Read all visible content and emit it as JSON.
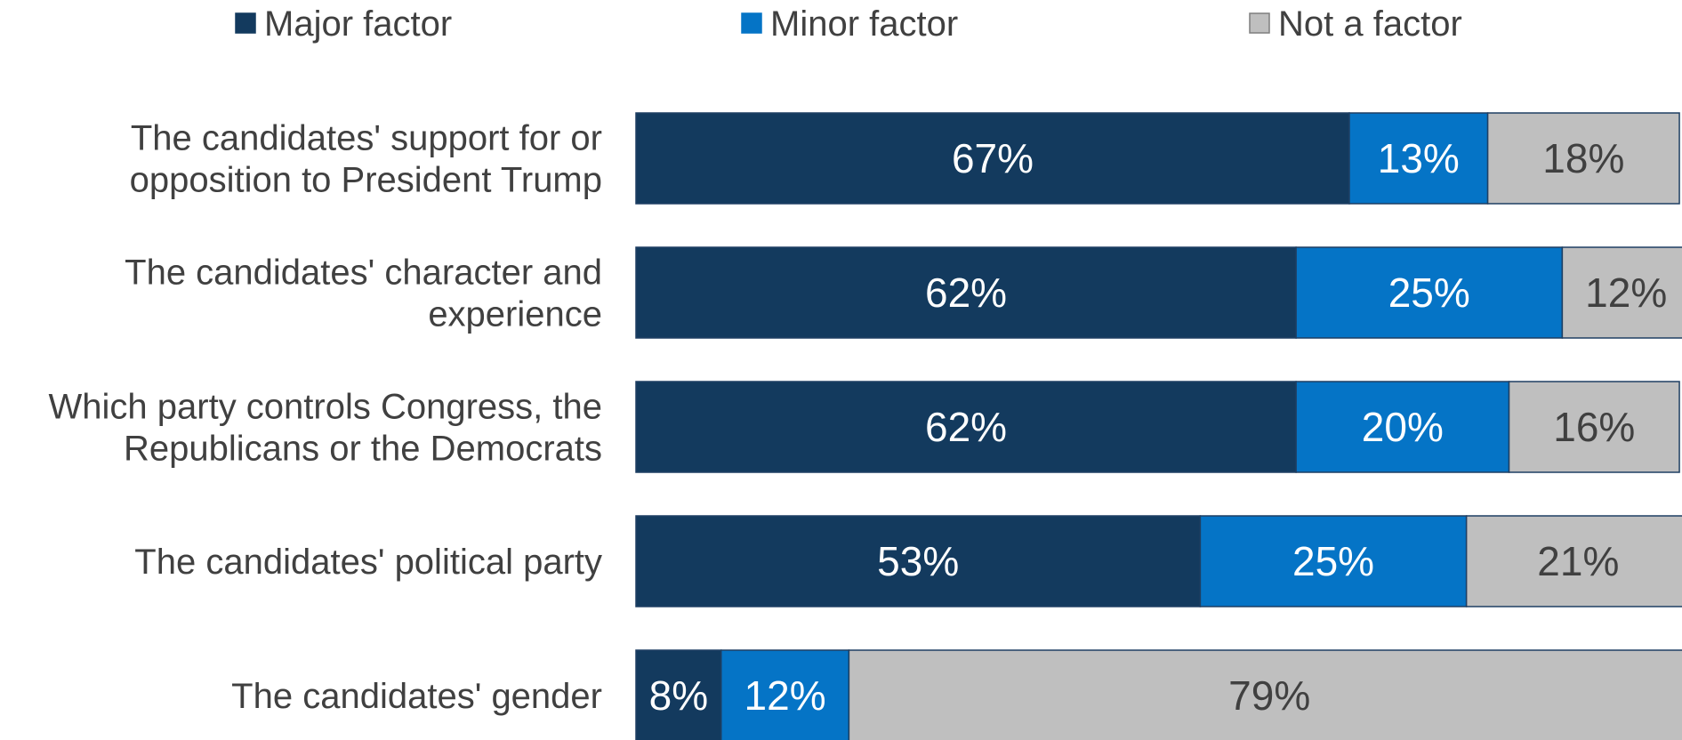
{
  "chart_data": {
    "type": "bar",
    "orientation": "horizontal",
    "stacked": true,
    "title": "",
    "xlabel": "",
    "ylabel": "",
    "xlim": [
      0,
      100
    ],
    "grid": false,
    "legend_position": "top",
    "categories": [
      [
        "The candidates' support for or",
        "opposition to President Trump"
      ],
      [
        "The candidates' character and",
        "experience"
      ],
      [
        "Which party controls Congress, the",
        "Republicans or the Democrats"
      ],
      [
        "The candidates' political party"
      ],
      [
        "The candidates' gender"
      ]
    ],
    "series": [
      {
        "name": "Major factor",
        "color": "#133a5e",
        "label_color": "#ffffff",
        "values": [
          67,
          62,
          62,
          53,
          8
        ]
      },
      {
        "name": "Minor factor",
        "color": "#0574c6",
        "label_color": "#ffffff",
        "values": [
          13,
          25,
          20,
          25,
          12
        ]
      },
      {
        "name": "Not a factor",
        "color": "#bfbfbf",
        "label_color": "#404040",
        "values": [
          18,
          12,
          16,
          21,
          79
        ]
      }
    ],
    "data_label_suffix": "%"
  }
}
